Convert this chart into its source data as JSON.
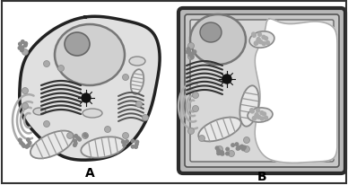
{
  "bg_color": "#ffffff",
  "border_color": "#333333",
  "cell_a_fill": "#e0e0e0",
  "cell_a_edge": "#222222",
  "cell_b_fill": "#d8d8d8",
  "cell_b_wall_fill": "#aaaaaa",
  "cell_b_wall_edge": "#333333",
  "vacuole_fill": "#ffffff",
  "nucleus_fill": "#c0c0c0",
  "nucleus_edge": "#666666",
  "nucleolus_fill": "#909090",
  "golgi_color": "#444444",
  "mito_fill": "#eeeeee",
  "mito_edge": "#777777",
  "er_color": "#bbbbbb",
  "dot_color": "#777777",
  "centrosome_color": "#111111",
  "label_fontsize": 10,
  "label_color": "#000000",
  "label_a": "A",
  "label_b": "B"
}
